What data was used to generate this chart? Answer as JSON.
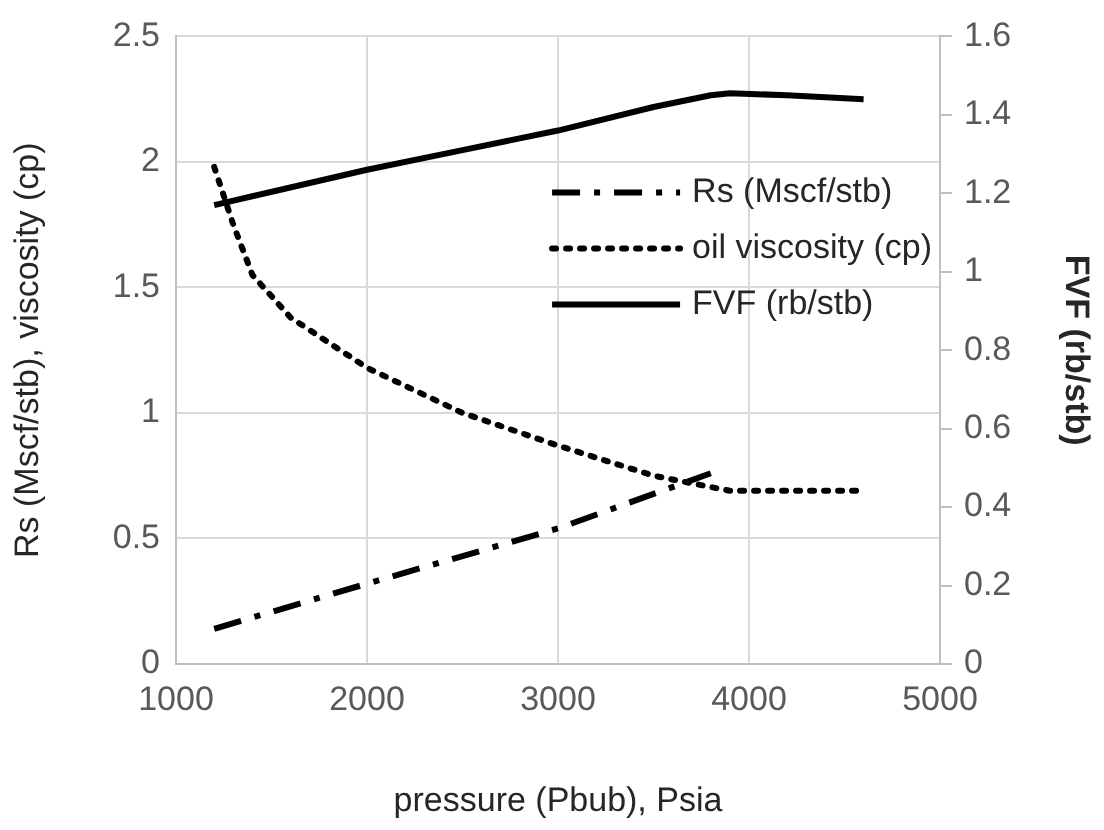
{
  "chart_data": {
    "type": "line",
    "xlabel": "pressure (Pbub), Psia",
    "ylabel": "Rs (Mscf/stb), viscosity (cp)",
    "y2label": "FVF (rb/stb)",
    "xlim": [
      1000,
      5000
    ],
    "xticks": [
      1000,
      2000,
      3000,
      4000,
      5000
    ],
    "ylim": [
      0,
      2.5
    ],
    "yticks": [
      0,
      0.5,
      1,
      1.5,
      2,
      2.5
    ],
    "y2lim": [
      0,
      1.6
    ],
    "y2ticks": [
      0,
      0.2,
      0.4,
      0.6,
      0.8,
      1,
      1.2,
      1.4,
      1.6
    ],
    "grid": true,
    "legend": "right",
    "marker": "none",
    "series": [
      {
        "name": "Rs (Mscf/stb)",
        "color": "#000000",
        "line_style": "dashed",
        "x": [
          1200,
          2000,
          3000,
          3800
        ],
        "values": [
          0.14,
          0.32,
          0.54,
          0.76
        ]
      },
      {
        "name": "oil viscosity (cp)",
        "color": "#000000",
        "line_style": "dotted",
        "x": [
          1200,
          1300,
          1400,
          1600,
          2000,
          2500,
          3000,
          3500,
          3900,
          4200,
          4600
        ],
        "values": [
          1.98,
          1.75,
          1.55,
          1.38,
          1.18,
          1.0,
          0.87,
          0.75,
          0.69,
          0.69,
          0.69
        ]
      },
      {
        "name": "FVF (rb/stb)",
        "color": "#000000",
        "line_style": "solid",
        "axis": "y2",
        "x": [
          1200,
          2000,
          2500,
          3000,
          3500,
          3800,
          3900,
          4200,
          4600
        ],
        "values": [
          1.17,
          1.26,
          1.31,
          1.36,
          1.42,
          1.45,
          1.455,
          1.45,
          1.44
        ]
      }
    ]
  }
}
